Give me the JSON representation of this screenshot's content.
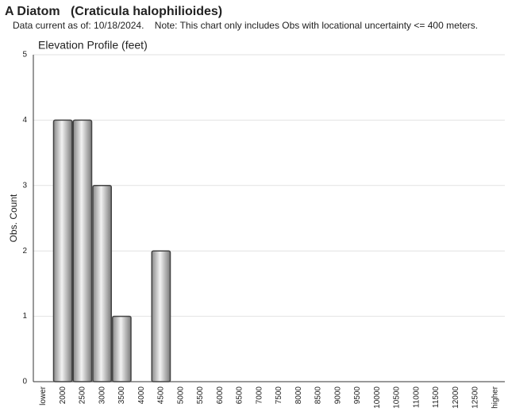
{
  "chart_data": {
    "type": "bar",
    "title": "A Diatom   (Craticula halophilioides)",
    "subtitle": "Data current as of: 10/18/2024.    Note: This chart only includes Obs with locational uncertainty <= 400 meters.",
    "chart_title": "Elevation Profile (feet)",
    "y_label": "Obs. Count",
    "categories": [
      "lower",
      "2000",
      "2500",
      "3000",
      "3500",
      "4000",
      "4500",
      "5000",
      "5500",
      "6000",
      "6500",
      "7000",
      "7500",
      "8000",
      "8500",
      "9000",
      "9500",
      "10000",
      "10500",
      "11000",
      "11500",
      "12000",
      "12500",
      "higher"
    ],
    "values": [
      0,
      4,
      4,
      3,
      1,
      0,
      2,
      0,
      0,
      0,
      0,
      0,
      0,
      0,
      0,
      0,
      0,
      0,
      0,
      0,
      0,
      0,
      0,
      0
    ],
    "color": "#b8b8b8",
    "ylim": [
      0,
      5
    ],
    "yticks": [
      0,
      1,
      2,
      3,
      4,
      5
    ],
    "grid": true
  }
}
